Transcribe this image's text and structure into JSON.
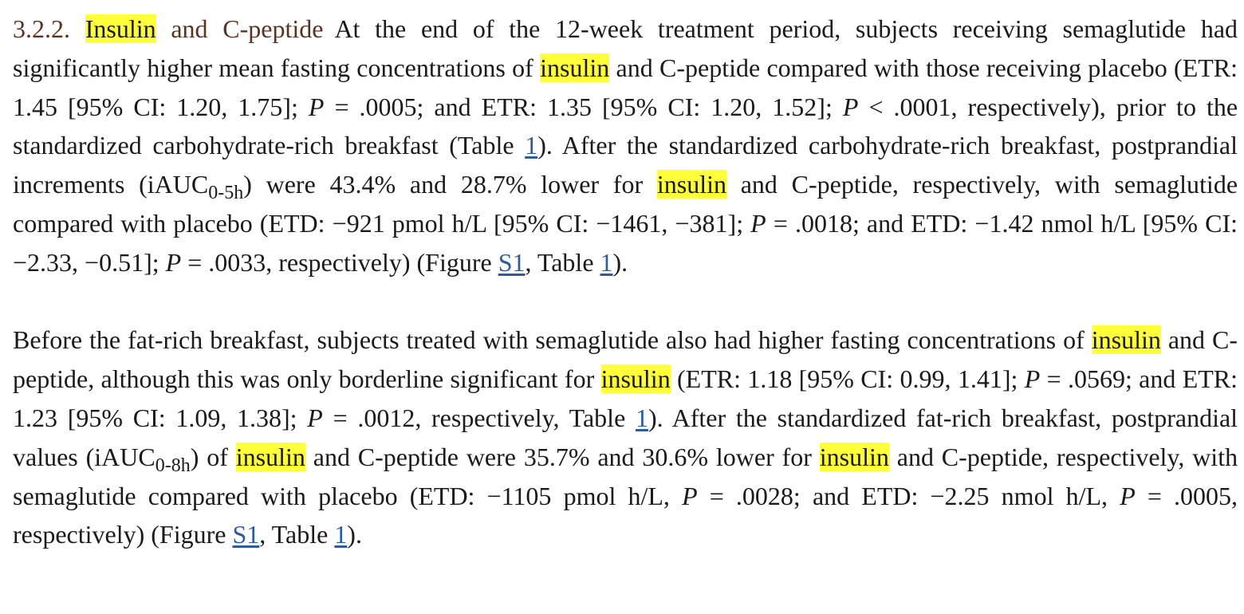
{
  "section": {
    "number": "3.2.2.",
    "title_highlight": "Insulin",
    "title_rest": "and C-peptide"
  },
  "highlight_term": "insulin",
  "paragraph1": {
    "s1": "At the end of the 12-week treatment period, subjects receiving semaglutide had significantly higher mean fasting concentrations of",
    "s2": "and C-peptide compared with those receiving placebo (ETR: 1.45 [95% CI: 1.20, 1.75];",
    "p": "P",
    "s3": "= .0005; and ETR: 1.35 [95% CI: 1.20, 1.52];",
    "s4": "< .0001, respectively), prior to the standardized carbohydrate-rich breakfast (Table",
    "ref_table": "1",
    "s5": "). After the standardized carbohydrate-rich breakfast, postprandial increments (iAUC",
    "sub1": "0-5h",
    "s6": ") were 43.4% and 28.7% lower for",
    "s7": "and C-peptide, respectively, with semaglutide compared with placebo (ETD: −921 pmol h/L [95% CI: −1461, −381];",
    "s8": "= .0018; and ETD: −1.42 nmol h/L [95% CI: −2.33, −0.51];",
    "s9": "= .0033, respectively) (Figure",
    "ref_figure": "S1",
    "s10": ", Table",
    "s11": ")."
  },
  "paragraph2": {
    "s1": "Before the fat-rich breakfast, subjects treated with semaglutide also had higher fasting concentrations of",
    "s2": "and C-peptide, although this was only borderline significant for",
    "s3": "(ETR: 1.18 [95% CI: 0.99, 1.41];",
    "s4": "= .0569; and ETR: 1.23 [95% CI: 1.09, 1.38];",
    "s5": "= .0012, respectively, Table",
    "s6": "). After the standardized fat-rich breakfast, postprandial values (iAUC",
    "sub2": "0-8h",
    "s7": ") of",
    "s8": "and C-peptide were 35.7% and 30.6% lower for",
    "s9": "and C-peptide, respectively, with semaglutide compared with placebo (ETD: −1105 pmol h/L,",
    "s10": "= .0028; and ETD: −2.25 nmol h/L,",
    "s11": "= .0005, respectively) (Figure",
    "s12": ", Table",
    "s13": ")."
  },
  "colors": {
    "highlight": "#ffff3a",
    "heading": "#5a3320",
    "link": "#2c5c9c",
    "text": "#1a1a1a"
  }
}
